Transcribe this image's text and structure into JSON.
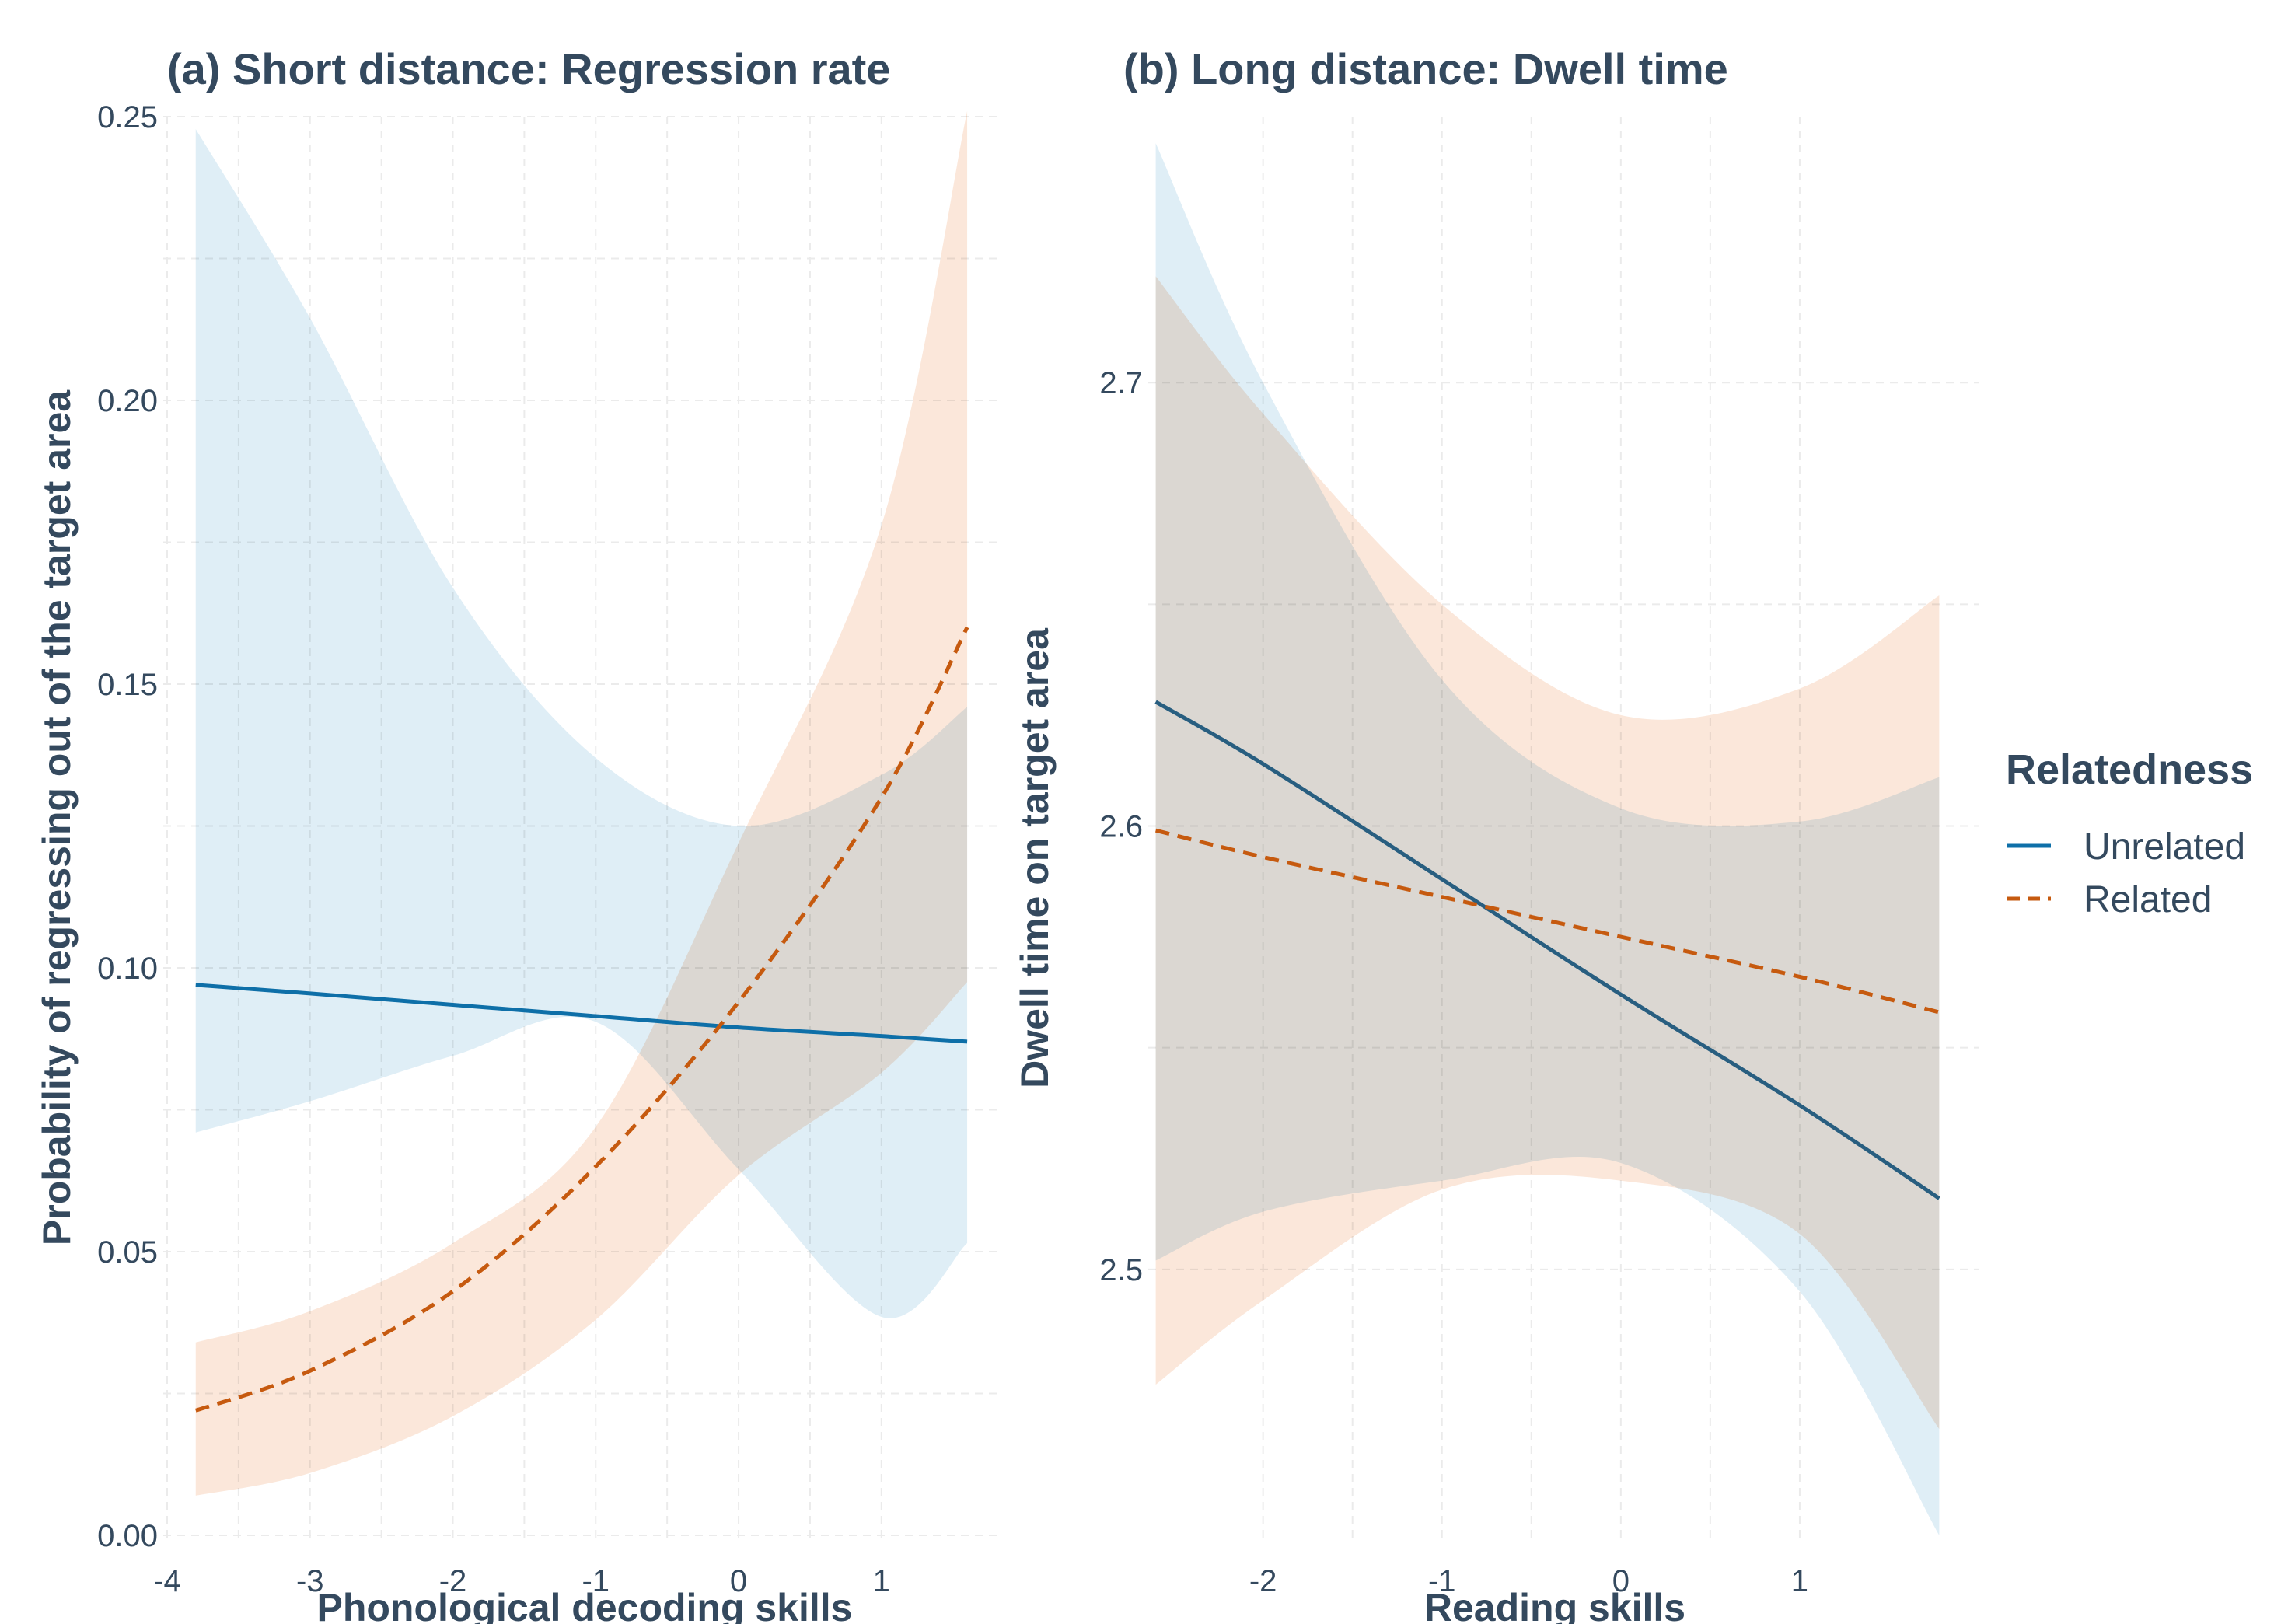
{
  "chart_data": [
    {
      "type": "line",
      "title": "(a) Short distance: Regression rate",
      "xlabel": "Phonological decoding skills",
      "ylabel": "Probability of regressing out of the target area",
      "xlim": [
        -4,
        1.85
      ],
      "ylim": [
        0.0,
        0.25
      ],
      "x_ticks": [
        -4,
        -3,
        -2,
        -1,
        0,
        1
      ],
      "x_tick_labels": [
        "-4",
        "-3",
        "-2",
        "-1",
        "0",
        "1"
      ],
      "y_ticks": [
        0.0,
        0.05,
        0.1,
        0.15,
        0.2,
        0.25
      ],
      "y_tick_labels": [
        "0.00",
        "0.05",
        "0.10",
        "0.15",
        "0.20",
        "0.25"
      ],
      "grid": true,
      "series": [
        {
          "name": "Unrelated",
          "color": "#0e6fa8",
          "band_color": "#cce4f0",
          "dash": "solid",
          "x": [
            -3.8,
            -3.0,
            -2.0,
            -1.0,
            0.0,
            1.0,
            1.6
          ],
          "y": [
            0.097,
            0.0955,
            0.0935,
            0.0915,
            0.0895,
            0.088,
            0.087
          ],
          "lower": [
            0.071,
            0.0765,
            0.0845,
            0.0905,
            0.0645,
            0.0385,
            0.0515
          ],
          "upper": [
            0.2478,
            0.2145,
            0.167,
            0.137,
            0.125,
            0.134,
            0.146
          ]
        },
        {
          "name": "Related",
          "color": "#c65a0f",
          "band_color": "#f9d9c3",
          "dash": "dashed",
          "x": [
            -3.8,
            -3.0,
            -2.0,
            -1.0,
            0.0,
            1.0,
            1.6
          ],
          "y": [
            0.022,
            0.029,
            0.043,
            0.065,
            0.094,
            0.13,
            0.16
          ],
          "lower": [
            0.007,
            0.011,
            0.021,
            0.038,
            0.0635,
            0.0815,
            0.0975
          ],
          "upper": [
            0.034,
            0.0395,
            0.0515,
            0.072,
            0.122,
            0.178,
            0.251
          ]
        }
      ]
    },
    {
      "type": "line",
      "title": "(b) Long distance: Dwell time",
      "xlabel": "Reading skills",
      "ylabel": "Dwell time on target area",
      "xlim": [
        -2.62,
        2.0
      ],
      "ylim": [
        2.44,
        2.76
      ],
      "x_ticks": [
        -2,
        -1,
        0,
        1
      ],
      "x_tick_labels": [
        "-2",
        "-1",
        "0",
        "1"
      ],
      "y_ticks": [
        2.5,
        2.6,
        2.7
      ],
      "y_tick_labels": [
        "2.5",
        "2.6",
        "2.7"
      ],
      "grid": true,
      "series": [
        {
          "name": "Unrelated",
          "color": "#285e80",
          "band_color": "#cce4f0",
          "dash": "solid",
          "x": [
            -2.6,
            -2.0,
            -1.0,
            0.0,
            1.0,
            1.78
          ],
          "y": [
            2.628,
            2.614,
            2.588,
            2.562,
            2.537,
            2.516
          ],
          "lower": [
            2.502,
            2.513,
            2.52,
            2.524,
            2.495,
            2.44
          ],
          "upper": [
            2.754,
            2.7,
            2.633,
            2.604,
            2.601,
            2.611
          ]
        },
        {
          "name": "Related",
          "color": "#c65a0f",
          "band_color": "#f9d9c3",
          "dash": "dashed",
          "x": [
            -2.6,
            -2.0,
            -1.0,
            0.0,
            1.0,
            1.78
          ],
          "y": [
            2.599,
            2.593,
            2.584,
            2.575,
            2.566,
            2.558
          ],
          "lower": [
            2.474,
            2.493,
            2.518,
            2.52,
            2.508,
            2.464
          ],
          "upper": [
            2.724,
            2.693,
            2.65,
            2.625,
            2.631,
            2.652
          ]
        }
      ]
    }
  ],
  "legend": {
    "title": "Relatedness",
    "position": "right",
    "items": [
      {
        "label": "Unrelated",
        "color": "#0e6fa8",
        "dash": "solid"
      },
      {
        "label": "Related",
        "color": "#c65a0f",
        "dash": "dashed"
      }
    ]
  }
}
